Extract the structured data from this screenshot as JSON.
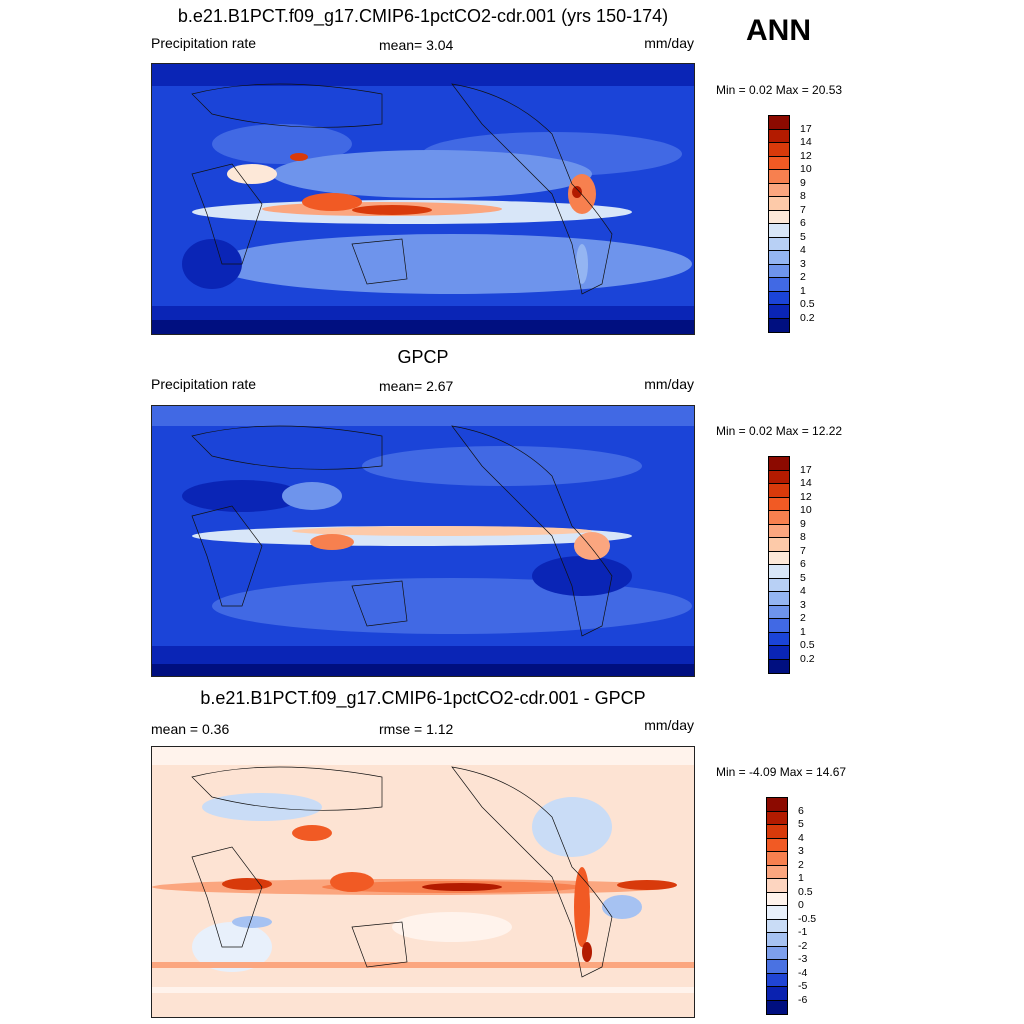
{
  "season": "ANN",
  "panels": [
    {
      "title": "b.e21.B1PCT.f09_g17.CMIP6-1pctCO2-cdr.001 (yrs 150-174)",
      "left_label": "Precipitation rate",
      "center_label": "mean=   3.04",
      "units": "mm/day",
      "minmax": "Min =   0.02 Max =  20.53",
      "colorbar_labels": [
        "17",
        "14",
        "12",
        "10",
        "9",
        "8",
        "7",
        "6",
        "5",
        "4",
        "3",
        "2",
        "1",
        "0.5",
        "0.2"
      ],
      "colorbar_colors": [
        "#8c0a00",
        "#b31b00",
        "#d83a0b",
        "#f15a24",
        "#f7804f",
        "#fba67f",
        "#fdcaa9",
        "#fde8d8",
        "#d8e6f8",
        "#b8d0f5",
        "#94b5f2",
        "#6e94ec",
        "#4169e4",
        "#1b44d8",
        "#0a25b6",
        "#000f80"
      ]
    },
    {
      "title": "GPCP",
      "left_label": "Precipitation rate",
      "center_label": "mean=   2.67",
      "units": "mm/day",
      "minmax": "Min =   0.02 Max =  12.22",
      "colorbar_labels": [
        "17",
        "14",
        "12",
        "10",
        "9",
        "8",
        "7",
        "6",
        "5",
        "4",
        "3",
        "2",
        "1",
        "0.5",
        "0.2"
      ],
      "colorbar_colors": [
        "#8c0a00",
        "#b31b00",
        "#d83a0b",
        "#f15a24",
        "#f7804f",
        "#fba67f",
        "#fdcaa9",
        "#fde8d8",
        "#d8e6f8",
        "#b8d0f5",
        "#94b5f2",
        "#6e94ec",
        "#4169e4",
        "#1b44d8",
        "#0a25b6",
        "#000f80"
      ]
    },
    {
      "title": "b.e21.B1PCT.f09_g17.CMIP6-1pctCO2-cdr.001 - GPCP",
      "left_label": "mean =   0.36",
      "center_label": "rmse =   1.12",
      "units": "mm/day",
      "minmax": "Min =  -4.09 Max =  14.67",
      "colorbar_labels": [
        "6",
        "5",
        "4",
        "3",
        "2",
        "1",
        "0.5",
        "0",
        "-0.5",
        "-1",
        "-2",
        "-3",
        "-4",
        "-5",
        "-6"
      ],
      "colorbar_colors": [
        "#8c0a00",
        "#b31b00",
        "#d83a0b",
        "#f15a24",
        "#f7804f",
        "#fba67f",
        "#fdd5c0",
        "#fff3ec",
        "#e8f0fb",
        "#c9dcf6",
        "#a6c2f2",
        "#7d9fec",
        "#4a72e2",
        "#2045d4",
        "#0a22b0",
        "#000f80"
      ]
    }
  ]
}
